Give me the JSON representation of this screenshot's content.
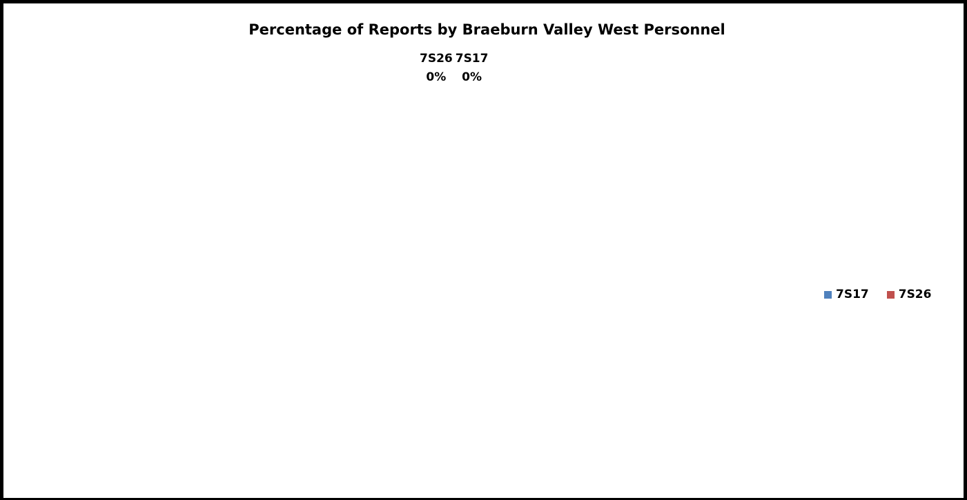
{
  "chart_data": {
    "type": "pie",
    "title": "Percentage of Reports by Braeburn Valley West Personnel",
    "categories": [
      "7S17",
      "7S26"
    ],
    "values": [
      0,
      0
    ],
    "colors": [
      "#4F81BD",
      "#C0504D"
    ],
    "data_labels": [
      {
        "category": "7S26",
        "value": "0%"
      },
      {
        "category": "7S17",
        "value": "0%"
      }
    ],
    "legend": {
      "placement": "right",
      "entries": [
        "7S17",
        "7S26"
      ]
    }
  }
}
